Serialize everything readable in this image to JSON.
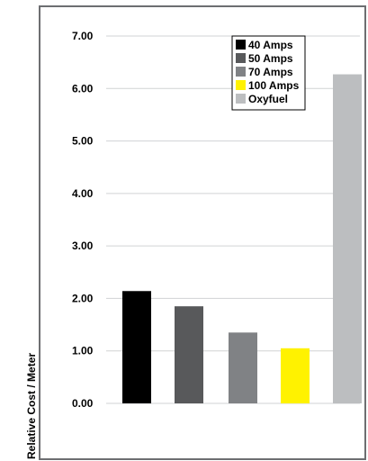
{
  "chart_data": {
    "type": "bar",
    "title": "",
    "xlabel": "",
    "ylabel": "Relative Cost / Meter",
    "ylim": [
      0,
      7
    ],
    "yticks": [
      "0.00",
      "1.00",
      "2.00",
      "3.00",
      "4.00",
      "5.00",
      "6.00",
      "7.00"
    ],
    "grid": true,
    "legend_position": "top-right",
    "categories": [
      "40 Amps",
      "50 Amps",
      "70 Amps",
      "100 Amps",
      "Oxyfuel"
    ],
    "values": [
      2.14,
      1.85,
      1.35,
      1.05,
      6.27
    ],
    "colors": [
      "#000000",
      "#58595b",
      "#808285",
      "#fff200",
      "#bcbec0"
    ]
  }
}
